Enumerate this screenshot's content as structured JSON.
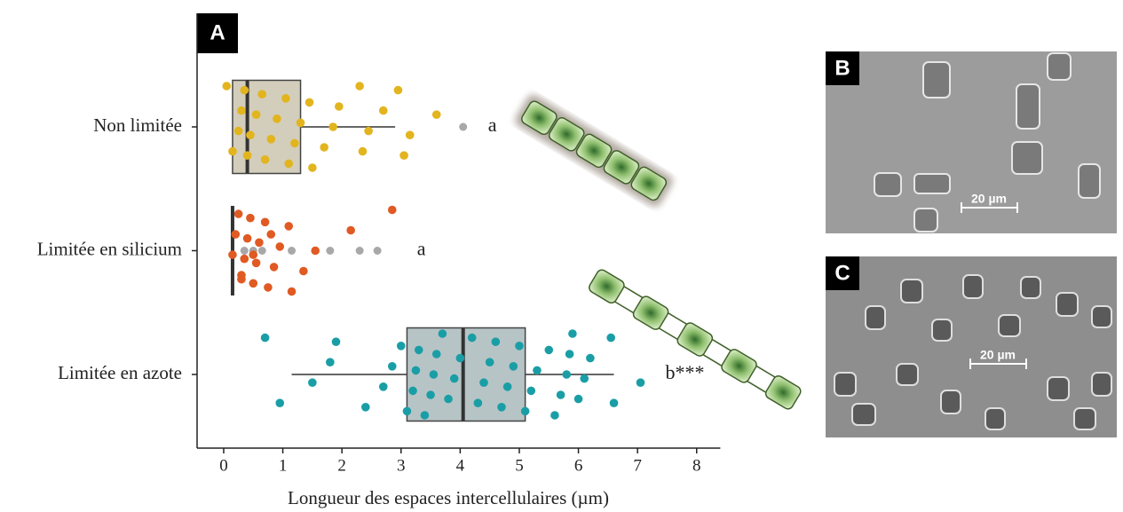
{
  "chart_data": {
    "type": "boxplot",
    "panel_label": "A",
    "x_label": "Longueur des espaces intercellulaires (µm)",
    "xlim": [
      -0.45,
      8.4
    ],
    "xticks": [
      0,
      1,
      2,
      3,
      4,
      5,
      6,
      7,
      8
    ],
    "categories": [
      "Non limitée",
      "Limitée en silicium",
      "Limitée en azote"
    ],
    "annotations": [
      "a",
      "a",
      "b***"
    ],
    "outlier_color": "#a8a8a8",
    "groups": [
      {
        "color": "#e2b41e",
        "fill": "#d3cebb",
        "box": {
          "min": 0.15,
          "q1": 0.15,
          "median": 0.4,
          "q3": 1.3,
          "max": 2.9
        },
        "outliers": [
          4.05
        ],
        "points": [
          0.05,
          0.15,
          0.25,
          0.3,
          0.35,
          0.4,
          0.45,
          0.55,
          0.65,
          0.7,
          0.8,
          0.9,
          1.05,
          1.1,
          1.2,
          1.3,
          1.45,
          1.5,
          1.7,
          1.85,
          1.95,
          2.3,
          2.35,
          2.45,
          2.7,
          2.95,
          3.05,
          3.15,
          3.6
        ]
      },
      {
        "color": "#e05a23",
        "fill": "#e5e5e5",
        "box": {
          "min": 0.15,
          "q1": 0.15,
          "median": 0.15,
          "q3": 0.15,
          "max": 0.15
        },
        "outliers": [
          0.35,
          0.5,
          0.65,
          1.15,
          1.8,
          2.3,
          2.6
        ],
        "points": [
          0.15,
          0.2,
          0.25,
          0.3,
          0.35,
          0.4,
          0.45,
          0.5,
          0.55,
          0.6,
          0.7,
          0.75,
          0.85,
          0.95,
          1.1,
          1.15,
          1.35,
          1.55,
          2.15,
          2.85,
          0.3,
          0.5,
          0.8
        ]
      },
      {
        "color": "#1a9ea6",
        "fill": "#b7c4c6",
        "box": {
          "min": 1.15,
          "q1": 3.1,
          "median": 4.05,
          "q3": 5.1,
          "max": 6.6
        },
        "outliers": [],
        "points": [
          0.7,
          0.95,
          1.5,
          1.8,
          1.9,
          2.4,
          2.7,
          2.85,
          3.0,
          3.1,
          3.2,
          3.25,
          3.3,
          3.4,
          3.5,
          3.55,
          3.6,
          3.7,
          3.8,
          3.9,
          4.0,
          4.2,
          4.3,
          4.4,
          4.5,
          4.6,
          4.7,
          4.8,
          4.9,
          5.0,
          5.1,
          5.2,
          5.3,
          5.5,
          5.6,
          5.7,
          5.8,
          5.85,
          5.9,
          6.0,
          6.1,
          6.2,
          6.55,
          6.6,
          7.05
        ]
      }
    ]
  },
  "micrographs": [
    {
      "label": "B",
      "scale_bar": "20 µm"
    },
    {
      "label": "C",
      "scale_bar": "20 µm"
    }
  ]
}
